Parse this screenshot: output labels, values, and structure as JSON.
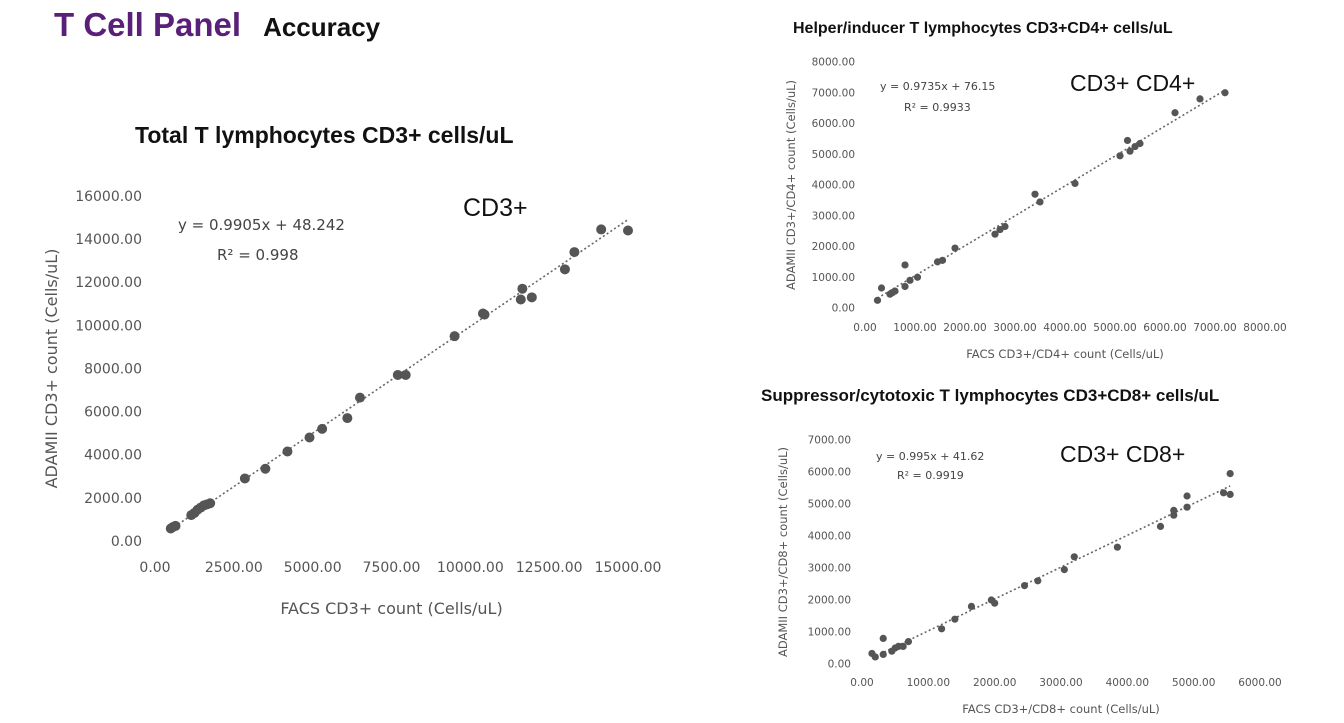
{
  "header": {
    "title": "T Cell Panel",
    "subtitle": "Accuracy"
  },
  "chart_data": [
    {
      "type": "scatter",
      "title": "Total T lymphocytes CD3+ cells/uL",
      "label": "CD3+",
      "xlabel": "FACS CD3+ count (Cells/uL)",
      "ylabel": "ADAMII CD3+ count (Cells/uL)",
      "equation": "y = 0.9905x + 48.242",
      "r2": "R² = 0.998",
      "trendline": {
        "slope": 0.9905,
        "intercept": 48.242
      },
      "xlim": [
        0,
        15000
      ],
      "ylim": [
        0,
        16000
      ],
      "xticks": [
        0,
        2500,
        5000,
        7500,
        10000,
        12500,
        15000
      ],
      "yticks": [
        0,
        2000,
        4000,
        6000,
        8000,
        10000,
        12000,
        14000,
        16000
      ],
      "xtick_labels": [
        "0.00",
        "2500.00",
        "5000.00",
        "7500.00",
        "10000.00",
        "12500.00",
        "15000.00"
      ],
      "ytick_labels": [
        "0.00",
        "2000.00",
        "4000.00",
        "6000.00",
        "8000.00",
        "10000.00",
        "12000.00",
        "14000.00",
        "16000.00"
      ],
      "marker_color": "#555555",
      "points": [
        [
          500,
          580
        ],
        [
          570,
          650
        ],
        [
          650,
          700
        ],
        [
          1150,
          1200
        ],
        [
          1250,
          1300
        ],
        [
          1350,
          1450
        ],
        [
          1450,
          1550
        ],
        [
          1550,
          1650
        ],
        [
          1650,
          1700
        ],
        [
          1750,
          1750
        ],
        [
          2850,
          2900
        ],
        [
          3500,
          3350
        ],
        [
          4200,
          4150
        ],
        [
          4900,
          4800
        ],
        [
          5300,
          5200
        ],
        [
          6100,
          5700
        ],
        [
          6500,
          6650
        ],
        [
          7700,
          7700
        ],
        [
          7950,
          7700
        ],
        [
          9500,
          9500
        ],
        [
          10400,
          10550
        ],
        [
          10450,
          10500
        ],
        [
          11600,
          11200
        ],
        [
          11650,
          11700
        ],
        [
          11950,
          11300
        ],
        [
          13000,
          12600
        ],
        [
          13300,
          13400
        ],
        [
          14150,
          14450
        ],
        [
          15000,
          14400
        ]
      ]
    },
    {
      "type": "scatter",
      "title": "Helper/inducer T lymphocytes CD3+CD4+ cells/uL",
      "label": "CD3+ CD4+",
      "xlabel": "FACS CD3+/CD4+ count (Cells/uL)",
      "ylabel": "ADAMII CD3+/CD4+ count (Cells/uL)",
      "equation": "y = 0.9735x + 76.15",
      "r2": "R² = 0.9933",
      "trendline": {
        "slope": 0.9735,
        "intercept": 76.15
      },
      "xlim": [
        0,
        8000
      ],
      "ylim": [
        0,
        8000
      ],
      "xticks": [
        0,
        1000,
        2000,
        3000,
        4000,
        5000,
        6000,
        7000,
        8000
      ],
      "yticks": [
        0,
        1000,
        2000,
        3000,
        4000,
        5000,
        6000,
        7000,
        8000
      ],
      "xtick_labels": [
        "0.00",
        "1000.00",
        "2000.00",
        "3000.00",
        "4000.00",
        "5000.00",
        "6000.00",
        "7000.00",
        "8000.00"
      ],
      "ytick_labels": [
        "0.00",
        "1000.00",
        "2000.00",
        "3000.00",
        "4000.00",
        "5000.00",
        "6000.00",
        "7000.00",
        "8000.00"
      ],
      "marker_color": "#555555",
      "points": [
        [
          250,
          250
        ],
        [
          330,
          650
        ],
        [
          500,
          450
        ],
        [
          550,
          500
        ],
        [
          600,
          550
        ],
        [
          800,
          700
        ],
        [
          800,
          1400
        ],
        [
          900,
          900
        ],
        [
          1050,
          1000
        ],
        [
          1450,
          1500
        ],
        [
          1550,
          1550
        ],
        [
          1800,
          1950
        ],
        [
          2600,
          2400
        ],
        [
          2700,
          2550
        ],
        [
          2800,
          2650
        ],
        [
          3400,
          3700
        ],
        [
          3500,
          3450
        ],
        [
          4200,
          4050
        ],
        [
          5100,
          4950
        ],
        [
          5250,
          5450
        ],
        [
          5300,
          5100
        ],
        [
          5400,
          5250
        ],
        [
          5500,
          5350
        ],
        [
          6200,
          6350
        ],
        [
          6700,
          6800
        ],
        [
          7200,
          7000
        ]
      ]
    },
    {
      "type": "scatter",
      "title": "Suppressor/cytotoxic T lymphocytes CD3+CD8+ cells/uL",
      "label": "CD3+ CD8+",
      "xlabel": "FACS CD3+/CD8+ count (Cells/uL)",
      "ylabel": "ADAMII CD3+/CD8+ count (Cells/uL)",
      "equation": "y = 0.995x + 41.62",
      "r2": "R² = 0.9919",
      "trendline": {
        "slope": 0.995,
        "intercept": 41.62
      },
      "xlim": [
        0,
        6000
      ],
      "ylim": [
        0,
        7000
      ],
      "xticks": [
        0,
        1000,
        2000,
        3000,
        4000,
        5000,
        6000
      ],
      "yticks": [
        0,
        1000,
        2000,
        3000,
        4000,
        5000,
        6000,
        7000
      ],
      "xtick_labels": [
        "0.00",
        "1000.00",
        "2000.00",
        "3000.00",
        "4000.00",
        "5000.00",
        "6000.00"
      ],
      "ytick_labels": [
        "0.00",
        "1000.00",
        "2000.00",
        "3000.00",
        "4000.00",
        "5000.00",
        "6000.00",
        "7000.00"
      ],
      "marker_color": "#555555",
      "points": [
        [
          150,
          330
        ],
        [
          200,
          220
        ],
        [
          320,
          300
        ],
        [
          320,
          800
        ],
        [
          450,
          400
        ],
        [
          500,
          500
        ],
        [
          550,
          550
        ],
        [
          620,
          550
        ],
        [
          700,
          700
        ],
        [
          1200,
          1100
        ],
        [
          1400,
          1400
        ],
        [
          1650,
          1800
        ],
        [
          1950,
          2000
        ],
        [
          2000,
          1900
        ],
        [
          2450,
          2450
        ],
        [
          2650,
          2600
        ],
        [
          3050,
          2950
        ],
        [
          3200,
          3350
        ],
        [
          3850,
          3650
        ],
        [
          4500,
          4300
        ],
        [
          4700,
          4650
        ],
        [
          4700,
          4800
        ],
        [
          4900,
          4900
        ],
        [
          4900,
          5250
        ],
        [
          5450,
          5350
        ],
        [
          5550,
          5950
        ],
        [
          5550,
          5300
        ]
      ]
    }
  ]
}
